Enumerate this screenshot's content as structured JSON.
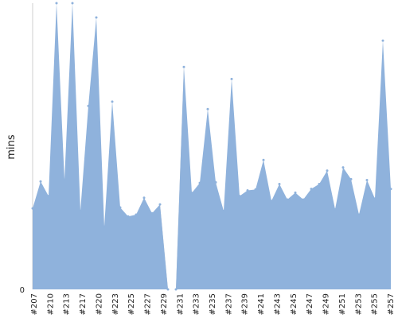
{
  "chart_data": {
    "type": "area",
    "ylabel": "mins",
    "y_tick_labels": [
      "0"
    ],
    "ylim": [
      0,
      100
    ],
    "color": "#8fb2dc",
    "gap_color": "#c8c8c8",
    "grid": false,
    "x_tick_labels": [
      "#207",
      "#210",
      "#213",
      "#217",
      "#220",
      "#223",
      "#225",
      "#227",
      "#229",
      "#231",
      "#233",
      "#235",
      "#237",
      "#239",
      "#241",
      "#243",
      "#245",
      "#247",
      "#249",
      "#251",
      "#253",
      "#255",
      "#257"
    ],
    "series": [
      {
        "values": [
          28.3,
          37.7,
          32.6,
          100,
          38.3,
          100,
          27.4,
          64.1,
          95,
          21.9,
          65.6,
          28.6,
          25.5,
          26.1,
          32,
          26.6,
          29.7,
          0,
          0,
          77.7,
          33.7,
          37.2,
          63,
          37.4,
          27.4,
          73.5,
          32.6,
          34.6,
          34.9,
          45.2,
          30.9,
          36.8,
          31.4,
          33.8,
          31.4,
          35.1,
          36.8,
          41.5,
          28,
          42.6,
          38.5,
          26.1,
          38.2,
          31.7,
          86.9,
          35.1
        ]
      }
    ]
  }
}
